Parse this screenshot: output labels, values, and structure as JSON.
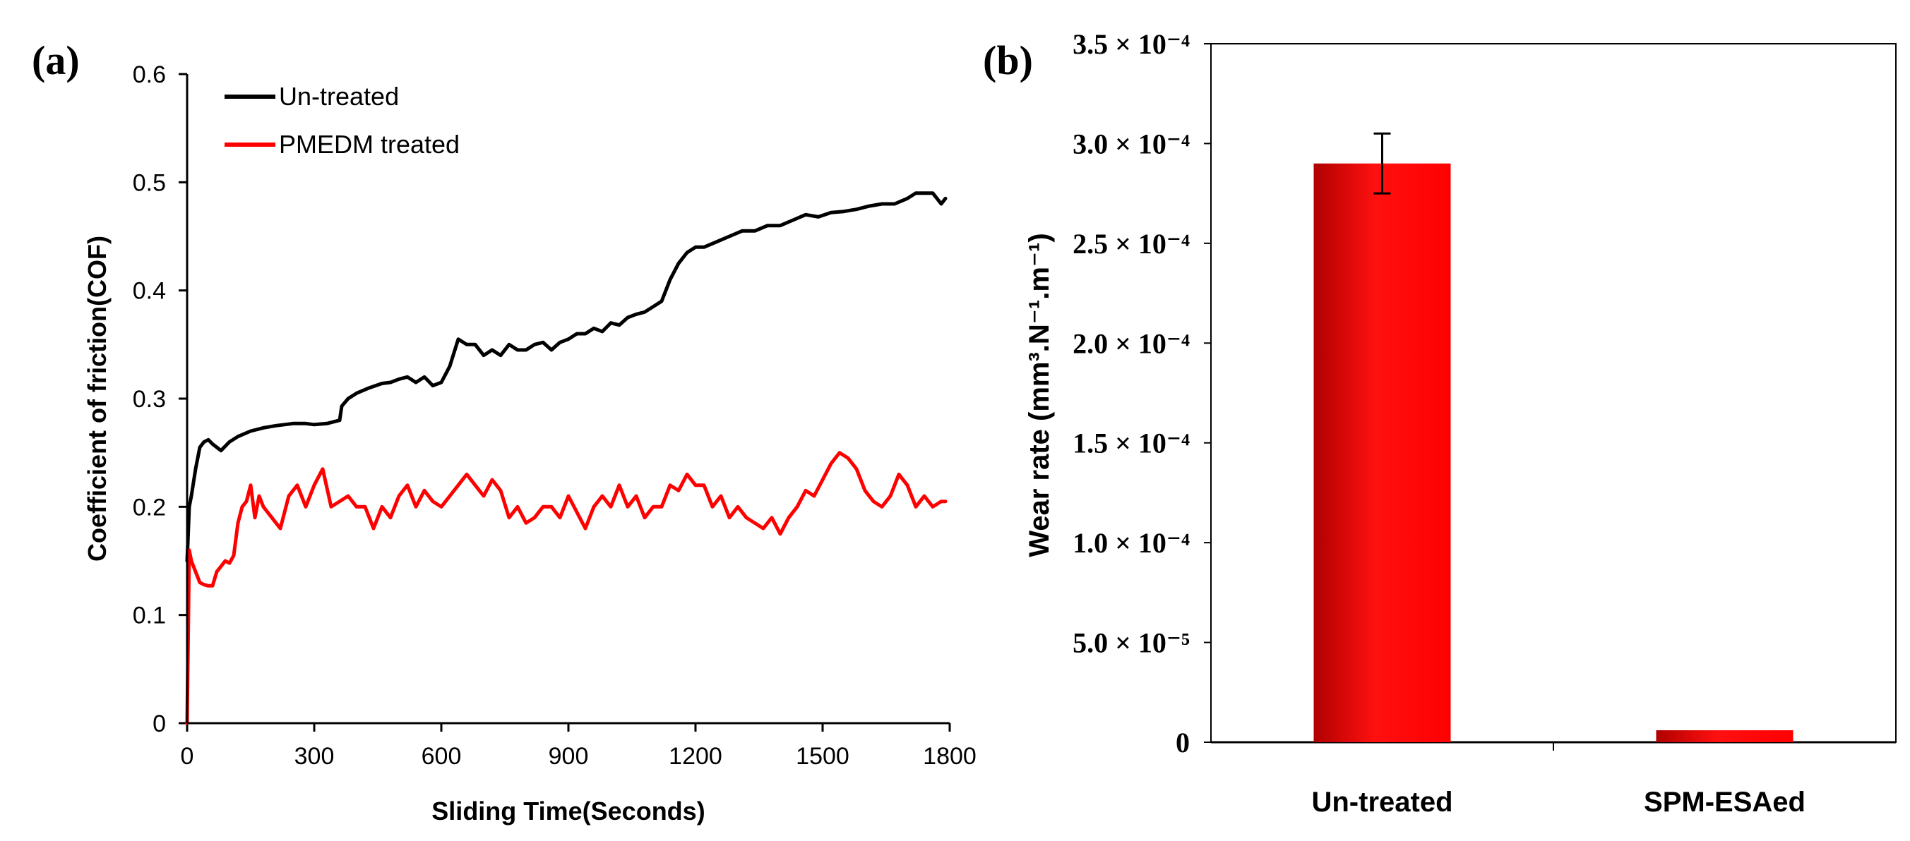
{
  "chart_data": [
    {
      "panel_label": "(a)",
      "type": "line",
      "xlabel": "Sliding Time(Seconds)",
      "ylabel": "Coefficient of friction(COF)",
      "xlim": [
        0,
        1800
      ],
      "ylim": [
        0,
        0.6
      ],
      "x_ticks": [
        0,
        300,
        600,
        900,
        1200,
        1500,
        1800
      ],
      "y_ticks": [
        0,
        0.1,
        0.2,
        0.3,
        0.4,
        0.5,
        0.6
      ],
      "x_tick_labels": [
        "0",
        "300",
        "600",
        "900",
        "1200",
        "1500",
        "1800"
      ],
      "y_tick_labels": [
        "0",
        "0.1",
        "0.2",
        "0.3",
        "0.4",
        "0.5",
        "0.6"
      ],
      "legend_position": "top-left",
      "series": [
        {
          "name": "Un-treated",
          "color": "#000000",
          "x": [
            0,
            5,
            10,
            20,
            30,
            40,
            50,
            60,
            70,
            80,
            100,
            120,
            150,
            180,
            210,
            250,
            280,
            300,
            330,
            350,
            360,
            365,
            380,
            400,
            430,
            460,
            480,
            500,
            520,
            540,
            560,
            580,
            600,
            620,
            640,
            660,
            680,
            700,
            720,
            740,
            760,
            780,
            800,
            820,
            840,
            860,
            880,
            900,
            920,
            940,
            960,
            980,
            1000,
            1020,
            1040,
            1060,
            1080,
            1100,
            1120,
            1140,
            1160,
            1180,
            1200,
            1220,
            1250,
            1280,
            1310,
            1340,
            1370,
            1400,
            1430,
            1460,
            1490,
            1520,
            1550,
            1580,
            1610,
            1640,
            1670,
            1700,
            1720,
            1740,
            1760,
            1780,
            1790
          ],
          "y": [
            0.15,
            0.2,
            0.21,
            0.235,
            0.255,
            0.26,
            0.262,
            0.258,
            0.255,
            0.252,
            0.26,
            0.265,
            0.27,
            0.273,
            0.275,
            0.277,
            0.277,
            0.276,
            0.277,
            0.279,
            0.28,
            0.293,
            0.3,
            0.305,
            0.31,
            0.314,
            0.315,
            0.318,
            0.32,
            0.315,
            0.32,
            0.312,
            0.315,
            0.33,
            0.355,
            0.35,
            0.35,
            0.34,
            0.345,
            0.34,
            0.35,
            0.345,
            0.345,
            0.35,
            0.352,
            0.345,
            0.352,
            0.355,
            0.36,
            0.36,
            0.365,
            0.362,
            0.37,
            0.368,
            0.375,
            0.378,
            0.38,
            0.385,
            0.39,
            0.41,
            0.425,
            0.435,
            0.44,
            0.44,
            0.445,
            0.45,
            0.455,
            0.455,
            0.46,
            0.46,
            0.465,
            0.47,
            0.468,
            0.472,
            0.473,
            0.475,
            0.478,
            0.48,
            0.48,
            0.485,
            0.49,
            0.49,
            0.49,
            0.48,
            0.485
          ]
        },
        {
          "name": "PMEDM treated",
          "color": "#ff0000",
          "x": [
            0,
            5,
            10,
            20,
            30,
            40,
            50,
            60,
            70,
            80,
            90,
            100,
            110,
            120,
            130,
            140,
            150,
            160,
            170,
            180,
            200,
            220,
            240,
            260,
            280,
            300,
            320,
            340,
            360,
            380,
            400,
            420,
            440,
            460,
            480,
            500,
            520,
            540,
            560,
            580,
            600,
            620,
            640,
            660,
            680,
            700,
            720,
            740,
            760,
            780,
            800,
            820,
            840,
            860,
            880,
            900,
            920,
            940,
            960,
            980,
            1000,
            1020,
            1040,
            1060,
            1080,
            1100,
            1120,
            1140,
            1160,
            1180,
            1200,
            1220,
            1240,
            1260,
            1280,
            1300,
            1320,
            1340,
            1360,
            1380,
            1400,
            1420,
            1440,
            1460,
            1480,
            1500,
            1520,
            1540,
            1560,
            1580,
            1600,
            1620,
            1640,
            1660,
            1680,
            1700,
            1720,
            1740,
            1760,
            1780,
            1790
          ],
          "y": [
            0.0,
            0.16,
            0.15,
            0.14,
            0.13,
            0.128,
            0.127,
            0.127,
            0.14,
            0.145,
            0.15,
            0.148,
            0.155,
            0.185,
            0.2,
            0.205,
            0.22,
            0.19,
            0.21,
            0.2,
            0.19,
            0.18,
            0.21,
            0.22,
            0.2,
            0.22,
            0.235,
            0.2,
            0.205,
            0.21,
            0.2,
            0.2,
            0.18,
            0.2,
            0.19,
            0.21,
            0.22,
            0.2,
            0.215,
            0.205,
            0.2,
            0.21,
            0.22,
            0.23,
            0.22,
            0.21,
            0.225,
            0.215,
            0.19,
            0.2,
            0.185,
            0.19,
            0.2,
            0.2,
            0.19,
            0.21,
            0.195,
            0.18,
            0.2,
            0.21,
            0.2,
            0.22,
            0.2,
            0.21,
            0.19,
            0.2,
            0.2,
            0.22,
            0.215,
            0.23,
            0.22,
            0.22,
            0.2,
            0.21,
            0.19,
            0.2,
            0.19,
            0.185,
            0.18,
            0.19,
            0.175,
            0.19,
            0.2,
            0.215,
            0.21,
            0.225,
            0.24,
            0.25,
            0.245,
            0.235,
            0.215,
            0.205,
            0.2,
            0.21,
            0.23,
            0.22,
            0.2,
            0.21,
            0.2,
            0.205,
            0.205
          ]
        }
      ]
    },
    {
      "panel_label": "(b)",
      "type": "bar",
      "ylabel": "Wear rate (mm³.N⁻¹.m⁻¹)",
      "ylim": [
        0,
        0.00035
      ],
      "y_ticks": [
        0,
        5e-05,
        0.0001,
        0.00015,
        0.0002,
        0.00025,
        0.0003,
        0.00035
      ],
      "y_tick_labels": [
        "0",
        "5.0 × 10⁻⁵",
        "1.0 × 10⁻⁴",
        "1.5 × 10⁻⁴",
        "2.0 × 10⁻⁴",
        "2.5 × 10⁻⁴",
        "3.0 × 10⁻⁴",
        "3.5 × 10⁻⁴"
      ],
      "categories": [
        "Un-treated",
        "SPM-ESAed"
      ],
      "values": [
        0.00029,
        6e-06
      ],
      "error": [
        1.5e-05,
        0
      ],
      "bar_color": "#ff0000",
      "bar_color_dark": "#b00000"
    }
  ]
}
